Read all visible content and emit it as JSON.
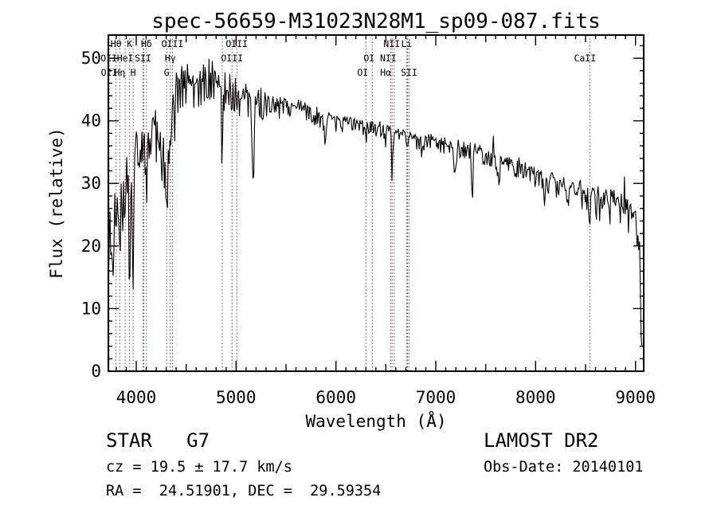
{
  "title": "spec-56659-M31023N28M1_sp09-087.fits",
  "colors": {
    "background": "#ffffff",
    "spectrum": "#000000",
    "axis": "#000000",
    "line_marker": "#7a444c",
    "text": "#000000"
  },
  "annotations": {
    "class_line": "STAR   G7",
    "survey_line": "LAMOST DR2",
    "cz_line": "cz = 19.5 ± 17.7 km/s",
    "obsdate_line": "Obs-Date: 20140101",
    "radec_line": "RA =  24.51901, DEC =  29.59354"
  },
  "chart_data": {
    "type": "line",
    "title": "spec-56659-M31023N28M1_sp09-087.fits",
    "xlabel": "Wavelength (Å)",
    "ylabel": "Flux (relative)",
    "xlim": [
      3720.7,
      9082.4
    ],
    "ylim": [
      0,
      53.7
    ],
    "x_ticks": [
      4000,
      5000,
      6000,
      7000,
      8000,
      9000
    ],
    "y_ticks": [
      0,
      10,
      20,
      30,
      40,
      50
    ],
    "x_minor_step": 100,
    "x_mid_step": 500,
    "y_minor_step": 2,
    "grid": false,
    "spectral_lines": [
      {
        "wl": 3725.9,
        "label": "OII",
        "row": 2
      },
      {
        "wl": 3728.8,
        "label": "OII",
        "row": 3
      },
      {
        "wl": 3798.0,
        "label": "Hθ",
        "row": 1
      },
      {
        "wl": 3835.4,
        "label": "Hη",
        "row": 3
      },
      {
        "wl": 3889.0,
        "label": "HeI",
        "row": 2
      },
      {
        "wl": 3933.7,
        "label": "K",
        "row": 1
      },
      {
        "wl": 3968.5,
        "label": "H",
        "row": 3
      },
      {
        "wl": 4068.6,
        "label": "SII",
        "row": 2
      },
      {
        "wl": 4076.4,
        "label": "",
        "row": 0
      },
      {
        "wl": 4101.7,
        "label": "Hδ",
        "row": 1
      },
      {
        "wl": 4305.0,
        "label": "G",
        "row": 3
      },
      {
        "wl": 4340.5,
        "label": "Hγ",
        "row": 2
      },
      {
        "wl": 4363.2,
        "label": "OIII",
        "row": 1
      },
      {
        "wl": 4861.3,
        "label": "",
        "row": 0
      },
      {
        "wl": 4958.9,
        "label": "OIII",
        "row": 2
      },
      {
        "wl": 5006.8,
        "label": "OIII",
        "row": 1
      },
      {
        "wl": 6300.3,
        "label": "OI",
        "row": 3,
        "dx": -4
      },
      {
        "wl": 6363.8,
        "label": "OI",
        "row": 2,
        "dx": -4
      },
      {
        "wl": 6548.0,
        "label": "NII",
        "row": 2,
        "dx": -3
      },
      {
        "wl": 6562.8,
        "label": "Hα",
        "row": 3,
        "dx": -8
      },
      {
        "wl": 6583.5,
        "label": "NII",
        "row": 1,
        "dx": -3
      },
      {
        "wl": 6707.9,
        "label": "Li",
        "row": 1
      },
      {
        "wl": 6716.4,
        "label": "SII",
        "row": 3,
        "dx": 2
      },
      {
        "wl": 6730.8,
        "label": "",
        "row": 0
      },
      {
        "wl": 8542.1,
        "label": "CaII",
        "row": 2,
        "dx": -6
      }
    ],
    "envelope_points": [
      [
        3721,
        24
      ],
      [
        3740,
        27
      ],
      [
        3760,
        24
      ],
      [
        3780,
        26
      ],
      [
        3800,
        28
      ],
      [
        3820,
        30
      ],
      [
        3840,
        30
      ],
      [
        3860,
        32
      ],
      [
        3880,
        33
      ],
      [
        3900,
        34
      ],
      [
        3920,
        33
      ],
      [
        3945,
        32
      ],
      [
        3960,
        31
      ],
      [
        3980,
        34
      ],
      [
        4000,
        36.5
      ],
      [
        4030,
        37.5
      ],
      [
        4060,
        37.5
      ],
      [
        4090,
        37
      ],
      [
        4130,
        38
      ],
      [
        4170,
        38.5
      ],
      [
        4220,
        38.5
      ],
      [
        4260,
        37.5
      ],
      [
        4290,
        34
      ],
      [
        4320,
        38
      ],
      [
        4360,
        43
      ],
      [
        4400,
        45
      ],
      [
        4450,
        46
      ],
      [
        4500,
        46.5
      ],
      [
        4550,
        46.5
      ],
      [
        4600,
        47
      ],
      [
        4650,
        47.3
      ],
      [
        4700,
        47.5
      ],
      [
        4750,
        47
      ],
      [
        4800,
        46.3
      ],
      [
        4860,
        45
      ],
      [
        4900,
        45.5
      ],
      [
        4950,
        45
      ],
      [
        5000,
        44.6
      ],
      [
        5050,
        44.2
      ],
      [
        5120,
        44
      ],
      [
        5180,
        42.5
      ],
      [
        5250,
        43.8
      ],
      [
        5320,
        43.4
      ],
      [
        5400,
        43
      ],
      [
        5500,
        42.6
      ],
      [
        5600,
        42.2
      ],
      [
        5700,
        41.8
      ],
      [
        5800,
        41.2
      ],
      [
        5900,
        40.2
      ],
      [
        6000,
        40.2
      ],
      [
        6100,
        40
      ],
      [
        6200,
        39.7
      ],
      [
        6300,
        39.4
      ],
      [
        6400,
        39.1
      ],
      [
        6500,
        38.7
      ],
      [
        6600,
        38.3
      ],
      [
        6700,
        37.8
      ],
      [
        6800,
        37.2
      ],
      [
        6900,
        36.9
      ],
      [
        7000,
        36.8
      ],
      [
        7100,
        36.4
      ],
      [
        7250,
        35.8
      ],
      [
        7400,
        35.2
      ],
      [
        7500,
        34.8
      ],
      [
        7650,
        33.6
      ],
      [
        7800,
        33.2
      ],
      [
        7900,
        32.5
      ],
      [
        8000,
        31.7
      ],
      [
        8100,
        30.9
      ],
      [
        8200,
        30.1
      ],
      [
        8300,
        29.4
      ],
      [
        8400,
        28.9
      ],
      [
        8500,
        28.4
      ],
      [
        8600,
        27.8
      ],
      [
        8700,
        27.2
      ],
      [
        8800,
        26.5
      ],
      [
        8880,
        27
      ],
      [
        8930,
        25.8
      ],
      [
        8980,
        25
      ],
      [
        9020,
        23
      ],
      [
        9045,
        17
      ],
      [
        9060,
        8
      ],
      [
        9067,
        2
      ]
    ],
    "absorption_features": [
      [
        3727,
        6,
        8
      ],
      [
        3750,
        9,
        6
      ],
      [
        3770,
        11,
        6
      ],
      [
        3798,
        7,
        6
      ],
      [
        3820,
        6,
        5
      ],
      [
        3835,
        10,
        6
      ],
      [
        3860,
        7,
        5
      ],
      [
        3889,
        8,
        6
      ],
      [
        3933.7,
        21,
        7
      ],
      [
        3968.5,
        13,
        7
      ],
      [
        4045,
        4,
        5
      ],
      [
        4101.7,
        7,
        7
      ],
      [
        4144,
        4,
        5
      ],
      [
        4227,
        5,
        5
      ],
      [
        4260,
        4,
        5
      ],
      [
        4305,
        9,
        10
      ],
      [
        4340.5,
        5,
        6
      ],
      [
        4383,
        4,
        5
      ],
      [
        4861.3,
        11,
        6
      ],
      [
        5007,
        4,
        5
      ],
      [
        5172,
        10,
        9
      ],
      [
        5270,
        4,
        6
      ],
      [
        5893,
        4.5,
        7
      ],
      [
        6300,
        2,
        5
      ],
      [
        6494,
        2,
        5
      ],
      [
        6562.8,
        7,
        6
      ],
      [
        6717,
        2.5,
        5
      ],
      [
        6867,
        2.5,
        8
      ],
      [
        7190,
        3,
        12
      ],
      [
        7365,
        9.5,
        6
      ],
      [
        7620,
        3.5,
        14
      ],
      [
        7805,
        3,
        5
      ],
      [
        8085,
        3,
        5
      ],
      [
        8230,
        2,
        6
      ],
      [
        8498,
        2.5,
        5
      ],
      [
        8542,
        2.5,
        6
      ],
      [
        8662,
        2.5,
        5
      ],
      [
        7580,
        -3.5,
        5
      ],
      [
        8890,
        -5,
        5
      ]
    ],
    "noise_profile": [
      [
        3721,
        4.2
      ],
      [
        3960,
        3.2
      ],
      [
        4080,
        2.6
      ],
      [
        4350,
        2.4
      ],
      [
        4700,
        2.2
      ],
      [
        5100,
        1.6
      ],
      [
        5500,
        1.1
      ],
      [
        6000,
        0.9
      ],
      [
        6800,
        0.8
      ],
      [
        7400,
        0.9
      ],
      [
        8000,
        1.1
      ],
      [
        8600,
        1.6
      ],
      [
        9000,
        2.3
      ],
      [
        9067,
        2.6
      ]
    ]
  }
}
